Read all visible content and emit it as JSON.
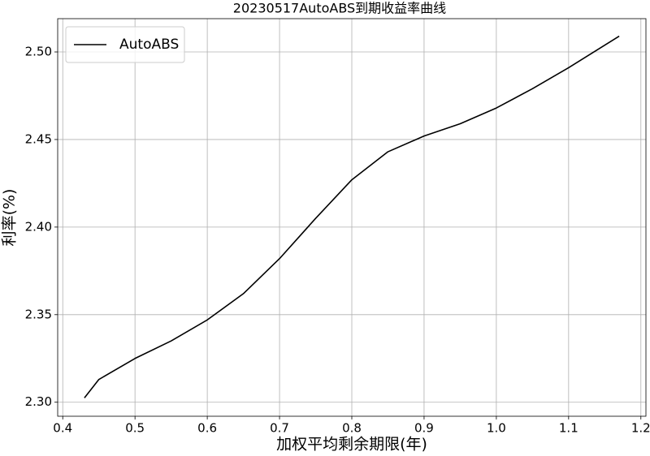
{
  "chart_data": {
    "type": "line",
    "title": "20230517AutoABS到期收益率曲线",
    "x_label": "加权平均剩余期限(年)",
    "y_label": "利率(%)",
    "x": [
      0.43,
      0.45,
      0.5,
      0.55,
      0.6,
      0.65,
      0.7,
      0.75,
      0.8,
      0.85,
      0.9,
      0.95,
      1.0,
      1.05,
      1.1,
      1.17
    ],
    "series": [
      {
        "name": "AutoABS",
        "color": "#000000",
        "values": [
          2.3025,
          2.313,
          2.325,
          2.335,
          2.347,
          2.362,
          2.382,
          2.405,
          2.427,
          2.443,
          2.452,
          2.459,
          2.468,
          2.479,
          2.491,
          2.509
        ]
      }
    ],
    "xlim": [
      0.393,
      1.207
    ],
    "ylim": [
      2.292,
      2.519
    ],
    "xticks": [
      0.4,
      0.5,
      0.6,
      0.7,
      0.8,
      0.9,
      {
        "value": 1,
        "label": "1.0"
      },
      1.1,
      1.2
    ],
    "yticks": [
      {
        "value": 2.3,
        "label": "2.30"
      },
      2.35,
      {
        "value": 2.4,
        "label": "2.40"
      },
      2.45,
      {
        "value": 2.5,
        "label": "2.50"
      }
    ],
    "grid": true,
    "legend": "upper left"
  }
}
